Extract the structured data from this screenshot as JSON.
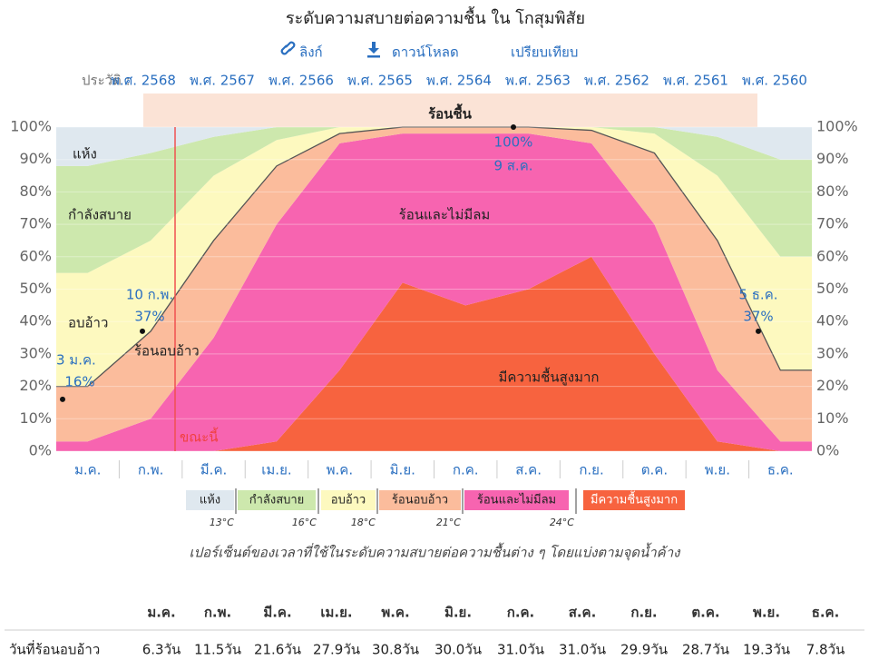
{
  "header": {
    "title": "ระดับความสบายต่อความชื้น ใน โกสุมพิสัย",
    "links": [
      "ลิงก์",
      "ดาวน์โหลด",
      "เปรียบเทียบ"
    ],
    "history_label": "ประวัติ :",
    "history": [
      "พ.ศ. 2568",
      "พ.ศ. 2567",
      "พ.ศ. 2566",
      "พ.ศ. 2565",
      "พ.ศ. 2564",
      "พ.ศ. 2563",
      "พ.ศ. 2562",
      "พ.ศ. 2561",
      "พ.ศ. 2560"
    ]
  },
  "chart_data": {
    "type": "area",
    "stacked": true,
    "categories": [
      "ม.ค.",
      "ก.พ.",
      "มี.ค.",
      "เม.ย.",
      "พ.ค.",
      "มิ.ย.",
      "ก.ค.",
      "ส.ค.",
      "ก.ย.",
      "ต.ค.",
      "พ.ย.",
      "ธ.ค."
    ],
    "series": [
      {
        "name": "มีความชื้นสูงมาก",
        "color": "#f7633f",
        "values": [
          0,
          0,
          0,
          3,
          25,
          52,
          45,
          50,
          60,
          30,
          3,
          0
        ]
      },
      {
        "name": "ร้อนและไม่มีลม",
        "color": "#f764b0",
        "values": [
          3,
          10,
          35,
          67,
          70,
          46,
          53,
          48,
          35,
          40,
          22,
          3
        ]
      },
      {
        "name": "ร้อนอบอ้าว",
        "color": "#fbbc9c",
        "values": [
          17,
          27,
          30,
          18,
          3,
          2,
          2,
          2,
          4,
          22,
          40,
          22
        ]
      },
      {
        "name": "อบอ้าว",
        "color": "#fdf9bf",
        "values": [
          35,
          28,
          20,
          8,
          2,
          0,
          0,
          0,
          1,
          6,
          20,
          35
        ]
      },
      {
        "name": "กำลังสบาย",
        "color": "#cde8ad",
        "values": [
          33,
          27,
          12,
          4,
          0,
          0,
          0,
          0,
          0,
          2,
          12,
          30
        ]
      },
      {
        "name": "แห้ง",
        "color": "#dfe8ef",
        "values": [
          12,
          8,
          3,
          0,
          0,
          0,
          0,
          0,
          0,
          0,
          3,
          10
        ]
      }
    ],
    "ylim": [
      0,
      100
    ],
    "yticks": [
      {
        "value": 0,
        "label": "0%"
      },
      {
        "value": 10,
        "label": "10%"
      },
      {
        "value": 20,
        "label": "20%"
      },
      {
        "value": 30,
        "label": "30%"
      },
      {
        "value": 40,
        "label": "40%"
      },
      {
        "value": 50,
        "label": "50%"
      },
      {
        "value": 60,
        "label": "60%"
      },
      {
        "value": 70,
        "label": "70%"
      },
      {
        "value": 80,
        "label": "80%"
      },
      {
        "value": 90,
        "label": "90%"
      },
      {
        "value": 100,
        "label": "100%"
      }
    ],
    "season_label": "ร้อนชื้น",
    "now_label": "ขณะนี้",
    "annotations": [
      {
        "date": "3 ม.ค.",
        "value": 16,
        "label": "16%"
      },
      {
        "date": "10 ก.พ.",
        "value": 37,
        "label": "37%"
      },
      {
        "date": "9 ส.ค.",
        "value": 100,
        "label": "100%"
      },
      {
        "date": "5 ธ.ค.",
        "value": 37,
        "label": "37%"
      }
    ],
    "thresholds": [
      "13°C",
      "16°C",
      "18°C",
      "21°C",
      "24°C"
    ],
    "caption": "เปอร์เซ็นต์ของเวลาที่ใช้ในระดับความสบายต่อความชื้นต่าง ๆ โดยแบ่งตามจุดน้ำค้าง"
  },
  "table": {
    "header": [
      "ม.ค.",
      "ก.พ.",
      "มี.ค.",
      "เม.ย.",
      "พ.ค.",
      "มิ.ย.",
      "ก.ค.",
      "ส.ค.",
      "ก.ย.",
      "ต.ค.",
      "พ.ย.",
      "ธ.ค."
    ],
    "rows": [
      [
        "วันที่ร้อนอบอ้าว",
        "6.3วัน",
        "11.5วัน",
        "21.6วัน",
        "27.9วัน",
        "30.8วัน",
        "30.0วัน",
        "31.0วัน",
        "31.0วัน",
        "29.9วัน",
        "28.7วัน",
        "19.3วัน",
        "7.8วัน"
      ]
    ]
  }
}
